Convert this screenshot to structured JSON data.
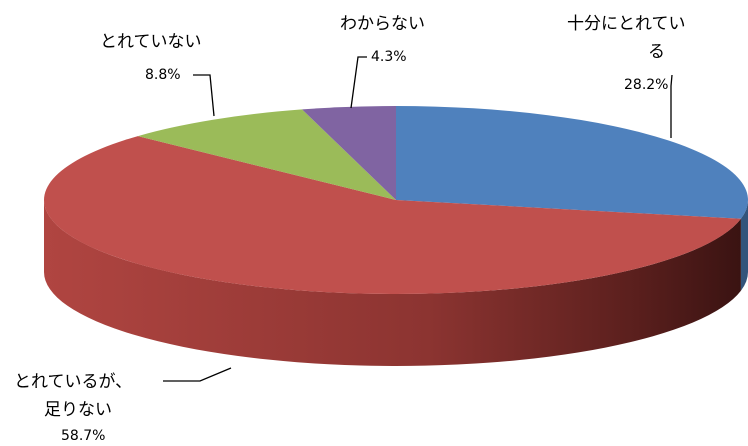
{
  "chart_data": {
    "type": "pie",
    "style": "3d",
    "start": "top",
    "direction": "clockwise",
    "slices": [
      {
        "label_lines": [
          "十分にとれてい",
          "る"
        ],
        "pct_label": "28.2%",
        "value": 28.2,
        "color": "#4f81bd"
      },
      {
        "label_lines": [
          "とれているが、",
          "足りない"
        ],
        "pct_label": "58.7%",
        "value": 58.7,
        "color": "#c0504d"
      },
      {
        "label_lines": [
          "とれていない"
        ],
        "pct_label": "8.8%",
        "value": 8.8,
        "color": "#9bbb59"
      },
      {
        "label_lines": [
          "わからない"
        ],
        "pct_label": "4.3%",
        "value": 4.3,
        "color": "#8064a2"
      }
    ]
  }
}
